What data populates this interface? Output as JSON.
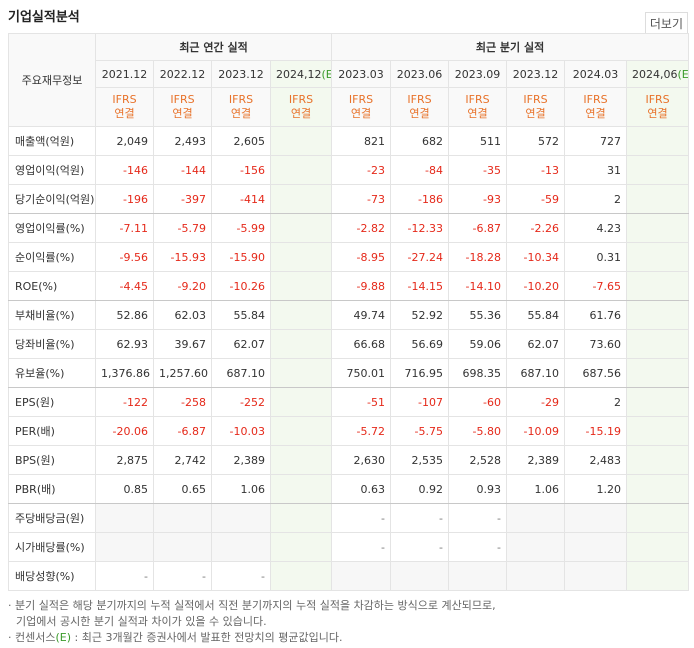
{
  "header": {
    "title": "기업실적분석",
    "more": "더보기"
  },
  "table": {
    "corner": "주요재무정보",
    "groups": [
      {
        "label": "최근 연간 실적",
        "span": 4
      },
      {
        "label": "최근 분기 실적",
        "span": 6
      }
    ],
    "columns": [
      {
        "period": "2021.12",
        "std": "IFRS",
        "scope": "연결"
      },
      {
        "period": "2022.12",
        "std": "IFRS",
        "scope": "연결"
      },
      {
        "period": "2023.12",
        "std": "IFRS",
        "scope": "연결"
      },
      {
        "period": "2024,12",
        "estimate": "(E)",
        "std": "IFRS",
        "scope": "연결"
      },
      {
        "period": "2023.03",
        "std": "IFRS",
        "scope": "연결"
      },
      {
        "period": "2023.06",
        "std": "IFRS",
        "scope": "연결"
      },
      {
        "period": "2023.09",
        "std": "IFRS",
        "scope": "연결"
      },
      {
        "period": "2023.12",
        "std": "IFRS",
        "scope": "연결"
      },
      {
        "period": "2024.03",
        "std": "IFRS",
        "scope": "연결"
      },
      {
        "period": "2024,06",
        "estimate": "(E)",
        "std": "IFRS",
        "scope": "연결"
      }
    ],
    "rows": [
      {
        "label": "매출액(억원)",
        "values": [
          "2,049",
          "2,493",
          "2,605",
          null,
          "821",
          "682",
          "511",
          "572",
          "727",
          null
        ]
      },
      {
        "label": "영업이익(억원)",
        "values": [
          "-146",
          "-144",
          "-156",
          null,
          "-23",
          "-84",
          "-35",
          "-13",
          "31",
          null
        ]
      },
      {
        "label": "당기순이익(억원)",
        "values": [
          "-196",
          "-397",
          "-414",
          null,
          "-73",
          "-186",
          "-93",
          "-59",
          "2",
          null
        ],
        "group_end": true
      },
      {
        "label": "영업이익률(%)",
        "values": [
          "-7.11",
          "-5.79",
          "-5.99",
          null,
          "-2.82",
          "-12.33",
          "-6.87",
          "-2.26",
          "4.23",
          null
        ]
      },
      {
        "label": "순이익률(%)",
        "values": [
          "-9.56",
          "-15.93",
          "-15.90",
          null,
          "-8.95",
          "-27.24",
          "-18.28",
          "-10.34",
          "0.31",
          null
        ]
      },
      {
        "label": "ROE(%)",
        "values": [
          "-4.45",
          "-9.20",
          "-10.26",
          null,
          "-9.88",
          "-14.15",
          "-14.10",
          "-10.20",
          "-7.65",
          null
        ],
        "group_end": true
      },
      {
        "label": "부채비율(%)",
        "values": [
          "52.86",
          "62.03",
          "55.84",
          null,
          "49.74",
          "52.92",
          "55.36",
          "55.84",
          "61.76",
          null
        ]
      },
      {
        "label": "당좌비율(%)",
        "values": [
          "62.93",
          "39.67",
          "62.07",
          null,
          "66.68",
          "56.69",
          "59.06",
          "62.07",
          "73.60",
          null
        ]
      },
      {
        "label": "유보율(%)",
        "values": [
          "1,376.86",
          "1,257.60",
          "687.10",
          null,
          "750.01",
          "716.95",
          "698.35",
          "687.10",
          "687.56",
          null
        ],
        "group_end": true
      },
      {
        "label": "EPS(원)",
        "values": [
          "-122",
          "-258",
          "-252",
          null,
          "-51",
          "-107",
          "-60",
          "-29",
          "2",
          null
        ]
      },
      {
        "label": "PER(배)",
        "values": [
          "-20.06",
          "-6.87",
          "-10.03",
          null,
          "-5.72",
          "-5.75",
          "-5.80",
          "-10.09",
          "-15.19",
          null
        ]
      },
      {
        "label": "BPS(원)",
        "values": [
          "2,875",
          "2,742",
          "2,389",
          null,
          "2,630",
          "2,535",
          "2,528",
          "2,389",
          "2,483",
          null
        ]
      },
      {
        "label": "PBR(배)",
        "values": [
          "0.85",
          "0.65",
          "1.06",
          null,
          "0.63",
          "0.92",
          "0.93",
          "1.06",
          "1.20",
          null
        ],
        "group_end": true
      },
      {
        "label": "주당배당금(원)",
        "values": [
          null,
          null,
          null,
          null,
          "-",
          "-",
          "-",
          null,
          null,
          null
        ]
      },
      {
        "label": "시가배당률(%)",
        "values": [
          null,
          null,
          null,
          null,
          "-",
          "-",
          "-",
          null,
          null,
          null
        ]
      },
      {
        "label": "배당성향(%)",
        "values": [
          "-",
          "-",
          "-",
          null,
          null,
          null,
          null,
          null,
          null,
          null
        ]
      }
    ]
  },
  "notes": [
    {
      "text": "분기 실적은 해당 분기까지의 누적 실적에서 직전 분기까지의 누적 실적을 차감하는 방식으로 계산되므로,",
      "cont": "기업에서 공시한 분기 실적과 차이가 있을 수 있습니다."
    },
    {
      "text": "컨센서스",
      "estimate": "(E)",
      "cont": " : 최근 3개월간 증권사에서 발표한 전망치의 평균값입니다."
    }
  ]
}
